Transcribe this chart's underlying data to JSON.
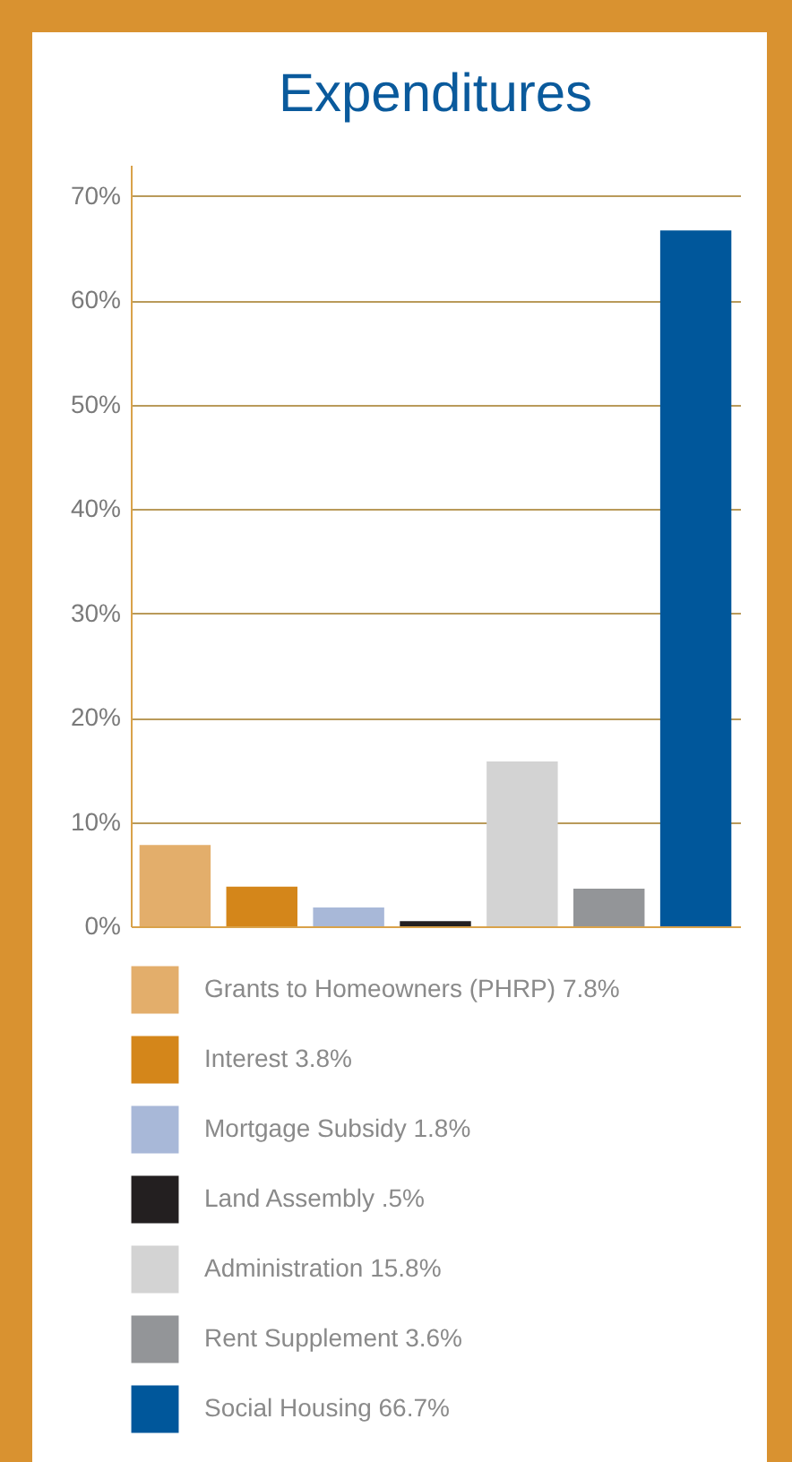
{
  "chart_data": {
    "type": "bar",
    "title": "Expenditures",
    "categories": [
      null,
      null,
      null,
      null,
      null,
      null,
      null
    ],
    "series": [
      {
        "name": "Grants to Homeowners (PHRP) 7.8%",
        "color": "#e3ae6b",
        "values": [
          7.8,
          null,
          null,
          null,
          null,
          null,
          null
        ]
      },
      {
        "name": "Interest 3.8%",
        "color": "#d4861a",
        "values": [
          null,
          3.8,
          null,
          null,
          null,
          null,
          null
        ]
      },
      {
        "name": "Mortgage Subsidy 1.8%",
        "color": "#a8b8d8",
        "values": [
          null,
          null,
          1.8,
          null,
          null,
          null,
          null
        ]
      },
      {
        "name": "Land Assembly .5%",
        "color": "#231f20",
        "values": [
          null,
          null,
          null,
          0.5,
          null,
          null,
          null
        ]
      },
      {
        "name": "Administration 15.8%",
        "color": "#d3d3d3",
        "values": [
          null,
          null,
          null,
          null,
          15.8,
          null,
          null
        ]
      },
      {
        "name": "Rent Supplement 3.6%",
        "color": "#939598",
        "values": [
          null,
          null,
          null,
          null,
          null,
          3.6,
          null
        ]
      },
      {
        "name": "Social Housing 66.7%",
        "color": "#00579b",
        "values": [
          null,
          null,
          null,
          null,
          null,
          null,
          66.7
        ]
      }
    ],
    "ylim": [
      0,
      73
    ],
    "yticks": [
      {
        "value": 0,
        "label": "0%"
      },
      {
        "value": 10,
        "label": "10%"
      },
      {
        "value": 20,
        "label": "20%"
      },
      {
        "value": 30,
        "label": "30%"
      },
      {
        "value": 40,
        "label": "40%"
      },
      {
        "value": 50,
        "label": "50%"
      },
      {
        "value": 60,
        "label": "60%"
      },
      {
        "value": 70,
        "label": "70%"
      }
    ],
    "grid": "y",
    "legend": "bottom",
    "tick_labels": "y"
  }
}
